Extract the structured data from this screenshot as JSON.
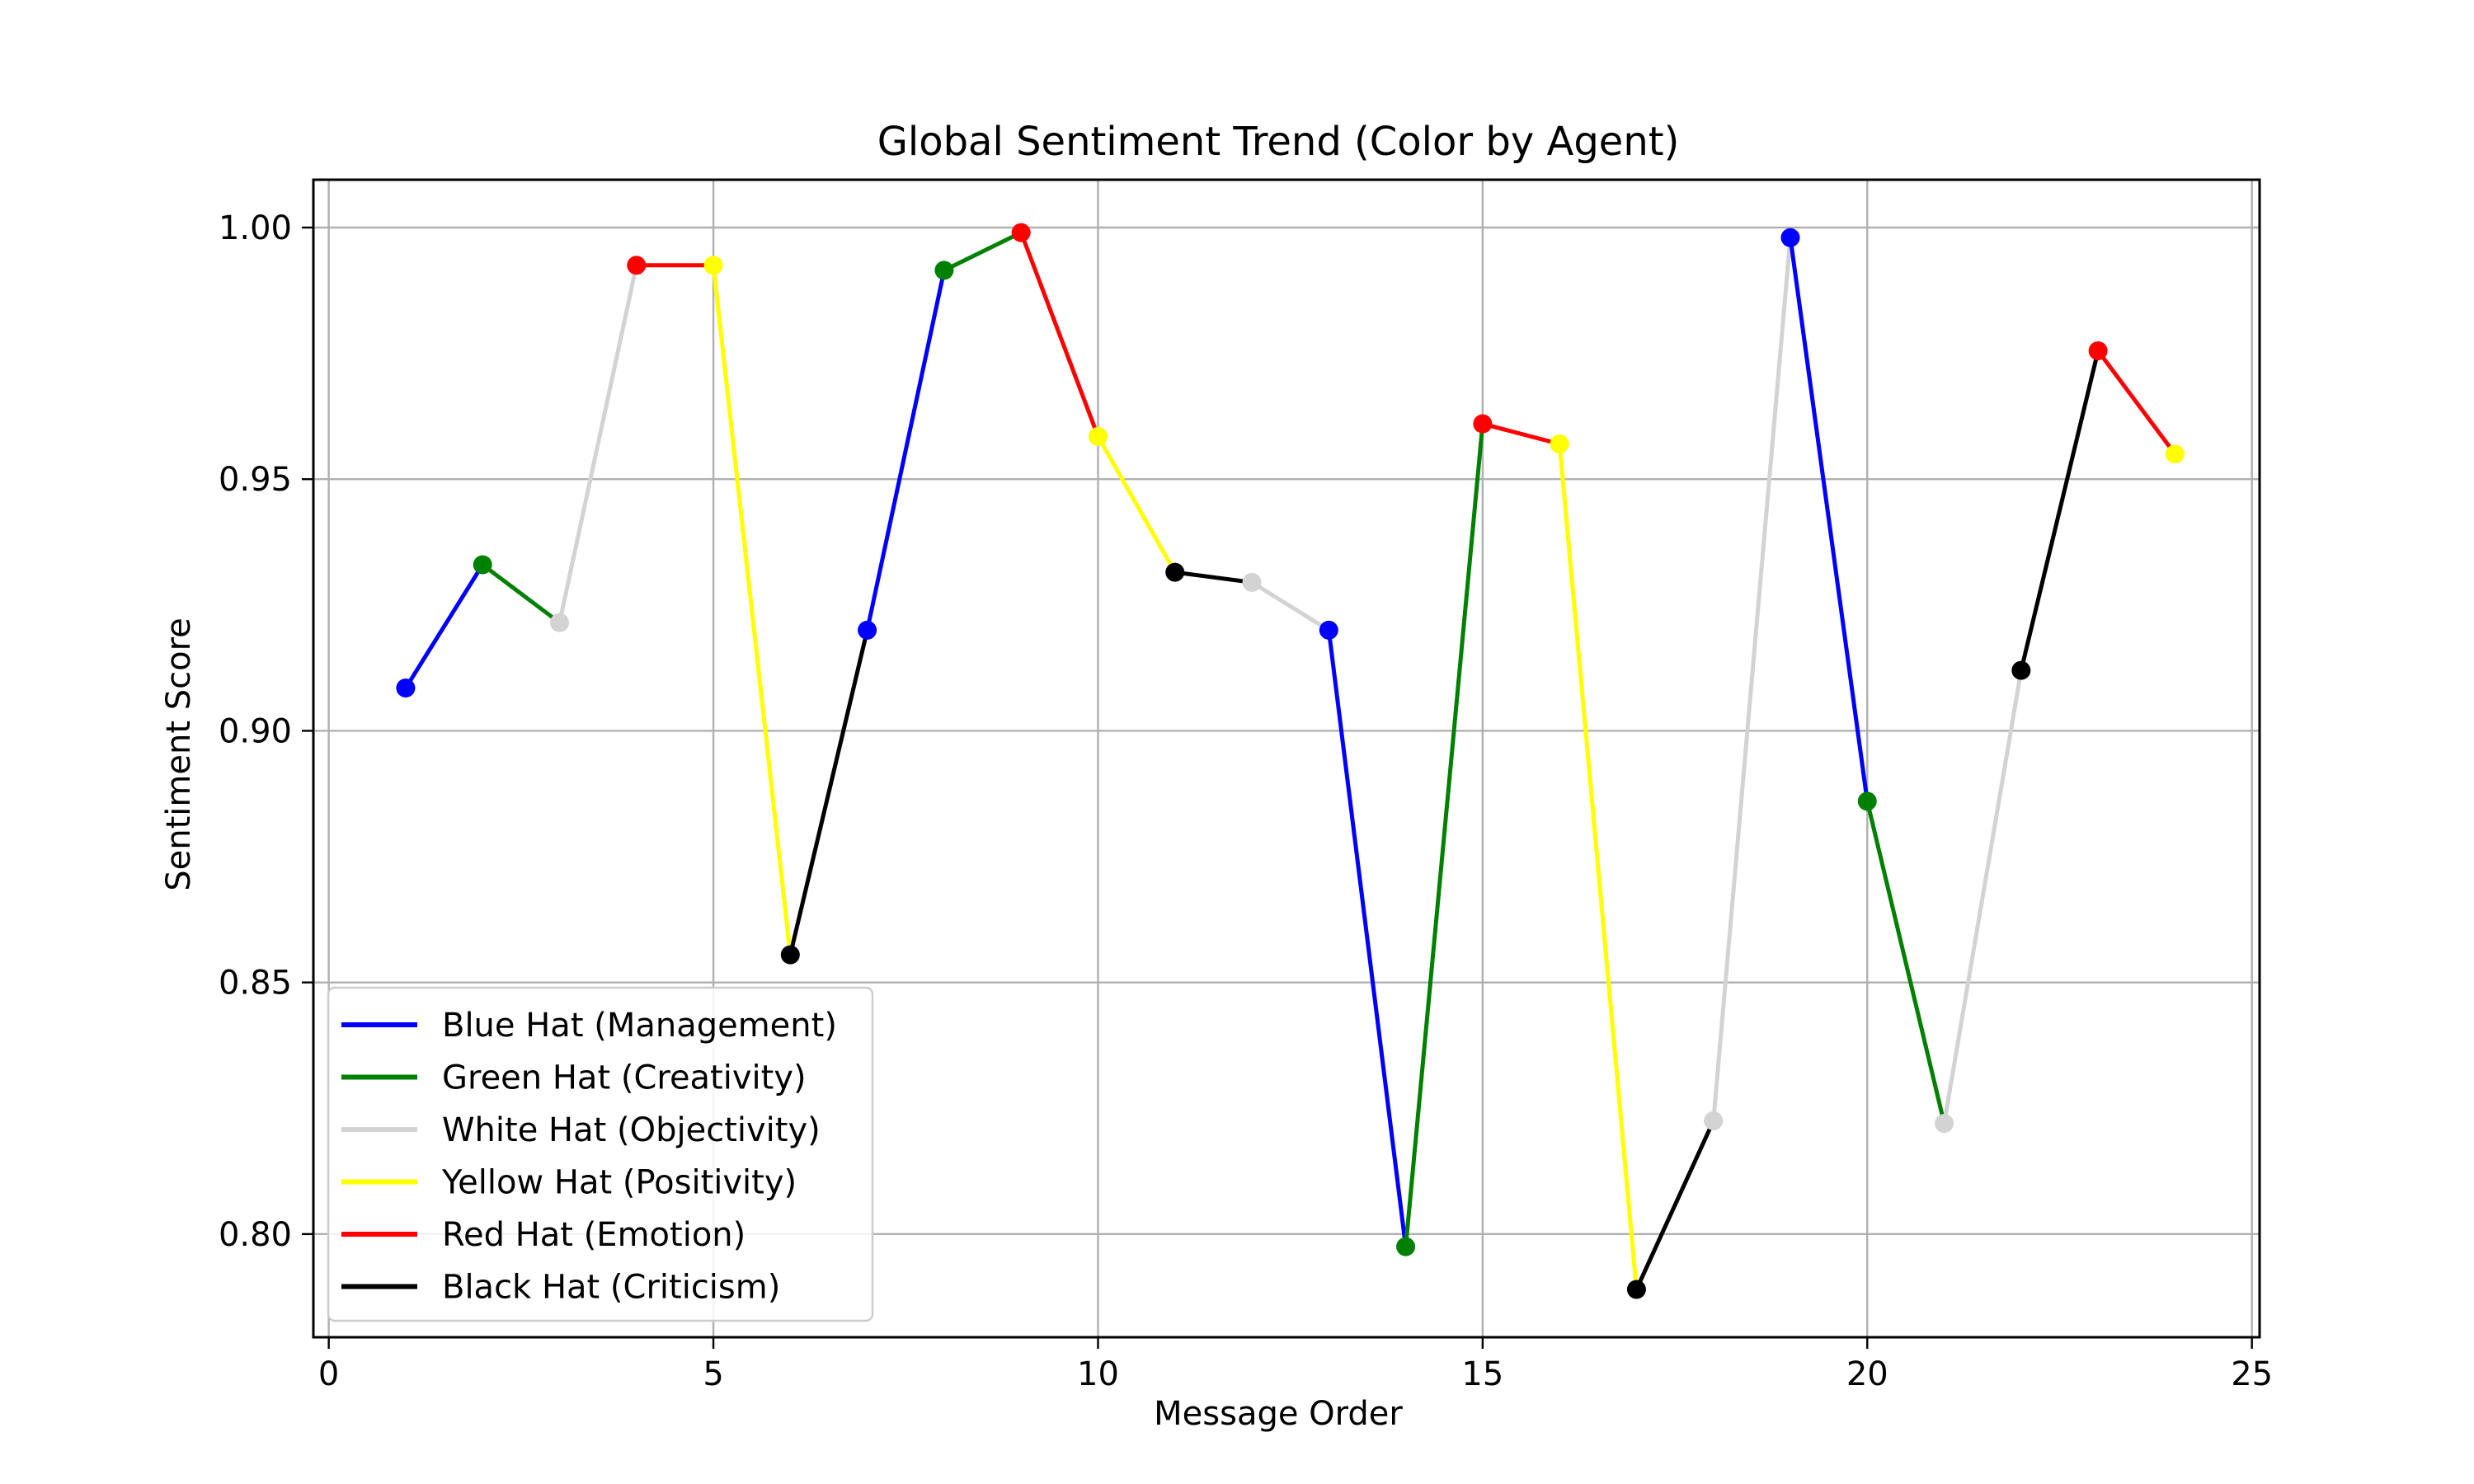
{
  "chart_data": {
    "type": "line",
    "title": "Global Sentiment Trend (Color by Agent)",
    "xlabel": "Message Order",
    "ylabel": "Sentiment Score",
    "xlim": [
      -0.2,
      25.1
    ],
    "ylim": [
      0.7795,
      1.0095
    ],
    "xticks": [
      0,
      5,
      10,
      15,
      20,
      25
    ],
    "yticks": [
      0.8,
      0.85,
      0.9,
      0.95,
      1.0
    ],
    "grid": true,
    "legend_position": "lower-left",
    "series": [
      {
        "name": "Blue Hat (Management)",
        "color": "#0000ff"
      },
      {
        "name": "Green Hat (Creativity)",
        "color": "#008000"
      },
      {
        "name": "White Hat (Objectivity)",
        "color": "#d3d3d3"
      },
      {
        "name": "Yellow Hat (Positivity)",
        "color": "#ffff00"
      },
      {
        "name": "Red Hat (Emotion)",
        "color": "#ff0000"
      },
      {
        "name": "Black Hat (Criticism)",
        "color": "#000000"
      }
    ],
    "points": [
      {
        "x": 1,
        "y": 0.9085,
        "agent": 0
      },
      {
        "x": 2,
        "y": 0.933,
        "agent": 1
      },
      {
        "x": 3,
        "y": 0.9215,
        "agent": 2
      },
      {
        "x": 4,
        "y": 0.9925,
        "agent": 4
      },
      {
        "x": 5,
        "y": 0.9925,
        "agent": 3
      },
      {
        "x": 6,
        "y": 0.8555,
        "agent": 5
      },
      {
        "x": 7,
        "y": 0.92,
        "agent": 0
      },
      {
        "x": 8,
        "y": 0.9915,
        "agent": 1
      },
      {
        "x": 9,
        "y": 0.999,
        "agent": 4
      },
      {
        "x": 10,
        "y": 0.9585,
        "agent": 3
      },
      {
        "x": 11,
        "y": 0.9315,
        "agent": 5
      },
      {
        "x": 12,
        "y": 0.9295,
        "agent": 2
      },
      {
        "x": 13,
        "y": 0.92,
        "agent": 0
      },
      {
        "x": 14,
        "y": 0.7975,
        "agent": 1
      },
      {
        "x": 15,
        "y": 0.961,
        "agent": 4
      },
      {
        "x": 16,
        "y": 0.957,
        "agent": 3
      },
      {
        "x": 17,
        "y": 0.789,
        "agent": 5
      },
      {
        "x": 18,
        "y": 0.8225,
        "agent": 2
      },
      {
        "x": 19,
        "y": 0.998,
        "agent": 0
      },
      {
        "x": 20,
        "y": 0.886,
        "agent": 1
      },
      {
        "x": 21,
        "y": 0.822,
        "agent": 2
      },
      {
        "x": 22,
        "y": 0.912,
        "agent": 5
      },
      {
        "x": 23,
        "y": 0.9755,
        "agent": 4
      },
      {
        "x": 24,
        "y": 0.955,
        "agent": 3
      }
    ]
  }
}
